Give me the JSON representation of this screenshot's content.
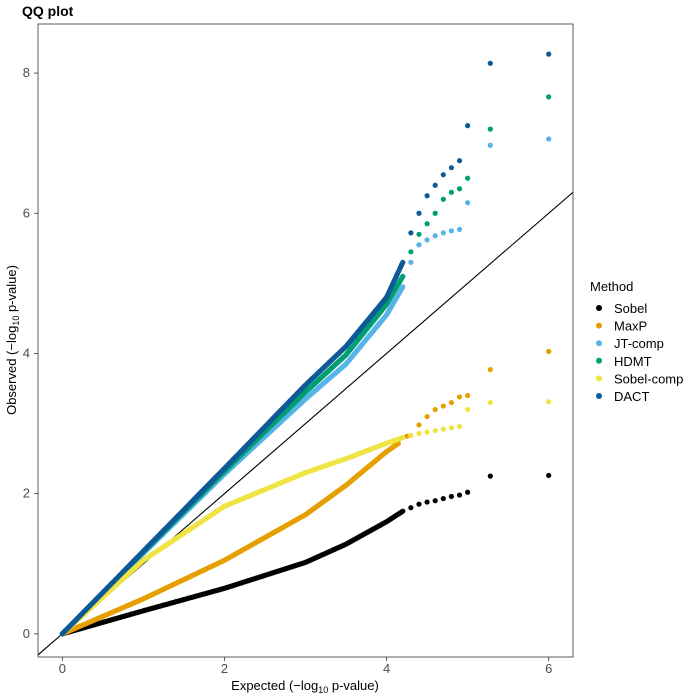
{
  "chart_data": {
    "type": "scatter",
    "title": "QQ plot",
    "xlabel": {
      "prefix": "Expected (−log",
      "sub": "10",
      "suffix": " p-value)"
    },
    "ylabel": {
      "prefix": "Observed (−log",
      "sub": "10",
      "suffix": " p-value)"
    },
    "xlim": [
      -0.3,
      6.3
    ],
    "ylim": [
      -0.33,
      8.7
    ],
    "x_ticks": [
      0,
      2,
      4,
      6
    ],
    "y_ticks": [
      0,
      2,
      4,
      6,
      8
    ],
    "grid": false,
    "reference_line": {
      "slope": 1,
      "intercept": 0,
      "color": "#000000"
    },
    "legend": {
      "title": "Method",
      "position": "right"
    },
    "series": [
      {
        "name": "Sobel",
        "color": "#000000",
        "bulk": [
          [
            0,
            0
          ],
          [
            1,
            0.33
          ],
          [
            2,
            0.65
          ],
          [
            3,
            1.02
          ],
          [
            3.5,
            1.28
          ],
          [
            4,
            1.6
          ],
          [
            4.2,
            1.75
          ]
        ],
        "tail": [
          [
            4.3,
            1.8
          ],
          [
            4.4,
            1.85
          ],
          [
            4.5,
            1.88
          ],
          [
            4.6,
            1.9
          ],
          [
            4.7,
            1.93
          ],
          [
            4.8,
            1.96
          ],
          [
            4.9,
            1.98
          ],
          [
            5.0,
            2.02
          ],
          [
            5.28,
            2.25
          ],
          [
            6.0,
            2.26
          ]
        ]
      },
      {
        "name": "MaxP",
        "color": "#E69F00",
        "bulk": [
          [
            0,
            0
          ],
          [
            1,
            0.5
          ],
          [
            2,
            1.05
          ],
          [
            3,
            1.7
          ],
          [
            3.5,
            2.12
          ],
          [
            4,
            2.6
          ],
          [
            4.15,
            2.72
          ]
        ],
        "tail": [
          [
            4.25,
            2.82
          ],
          [
            4.4,
            2.98
          ],
          [
            4.5,
            3.1
          ],
          [
            4.6,
            3.2
          ],
          [
            4.7,
            3.25
          ],
          [
            4.8,
            3.3
          ],
          [
            4.9,
            3.38
          ],
          [
            5.0,
            3.4
          ],
          [
            5.28,
            3.77
          ],
          [
            6.0,
            4.03
          ]
        ]
      },
      {
        "name": "JT-comp",
        "color": "#56B4E9",
        "bulk": [
          [
            0,
            0
          ],
          [
            1,
            1.15
          ],
          [
            2,
            2.28
          ],
          [
            3,
            3.35
          ],
          [
            3.5,
            3.85
          ],
          [
            4,
            4.55
          ],
          [
            4.2,
            4.95
          ]
        ],
        "tail": [
          [
            4.3,
            5.3
          ],
          [
            4.4,
            5.55
          ],
          [
            4.5,
            5.62
          ],
          [
            4.6,
            5.68
          ],
          [
            4.7,
            5.72
          ],
          [
            4.8,
            5.75
          ],
          [
            4.9,
            5.77
          ],
          [
            5.0,
            6.15
          ],
          [
            5.28,
            6.97
          ],
          [
            6.0,
            7.06
          ]
        ]
      },
      {
        "name": "HDMT",
        "color": "#009E73",
        "bulk": [
          [
            0,
            0
          ],
          [
            1,
            1.17
          ],
          [
            2,
            2.32
          ],
          [
            3,
            3.45
          ],
          [
            3.5,
            3.98
          ],
          [
            4,
            4.7
          ],
          [
            4.2,
            5.1
          ]
        ],
        "tail": [
          [
            4.3,
            5.45
          ],
          [
            4.4,
            5.7
          ],
          [
            4.5,
            5.85
          ],
          [
            4.6,
            6.0
          ],
          [
            4.7,
            6.2
          ],
          [
            4.8,
            6.3
          ],
          [
            4.9,
            6.35
          ],
          [
            5.0,
            6.5
          ],
          [
            5.28,
            7.2
          ],
          [
            6.0,
            7.66
          ]
        ]
      },
      {
        "name": "Sobel-comp",
        "color": "#F0E442",
        "bulk": [
          [
            0,
            0
          ],
          [
            1,
            1.05
          ],
          [
            2,
            1.82
          ],
          [
            3,
            2.3
          ],
          [
            3.5,
            2.5
          ],
          [
            4,
            2.72
          ],
          [
            4.2,
            2.8
          ]
        ],
        "tail": [
          [
            4.3,
            2.83
          ],
          [
            4.4,
            2.86
          ],
          [
            4.5,
            2.88
          ],
          [
            4.6,
            2.9
          ],
          [
            4.7,
            2.92
          ],
          [
            4.8,
            2.94
          ],
          [
            4.9,
            2.96
          ],
          [
            5.0,
            3.2
          ],
          [
            5.28,
            3.3
          ],
          [
            6.0,
            3.31
          ]
        ]
      },
      {
        "name": "DACT",
        "color": "#0E5A96",
        "bulk": [
          [
            0,
            0
          ],
          [
            1,
            1.18
          ],
          [
            2,
            2.36
          ],
          [
            3,
            3.55
          ],
          [
            3.5,
            4.1
          ],
          [
            4,
            4.8
          ],
          [
            4.2,
            5.3
          ]
        ],
        "tail": [
          [
            4.3,
            5.72
          ],
          [
            4.4,
            6.0
          ],
          [
            4.5,
            6.25
          ],
          [
            4.6,
            6.4
          ],
          [
            4.7,
            6.55
          ],
          [
            4.8,
            6.65
          ],
          [
            4.9,
            6.75
          ],
          [
            5.0,
            7.25
          ],
          [
            5.28,
            8.14
          ],
          [
            6.0,
            8.27
          ]
        ]
      }
    ]
  }
}
